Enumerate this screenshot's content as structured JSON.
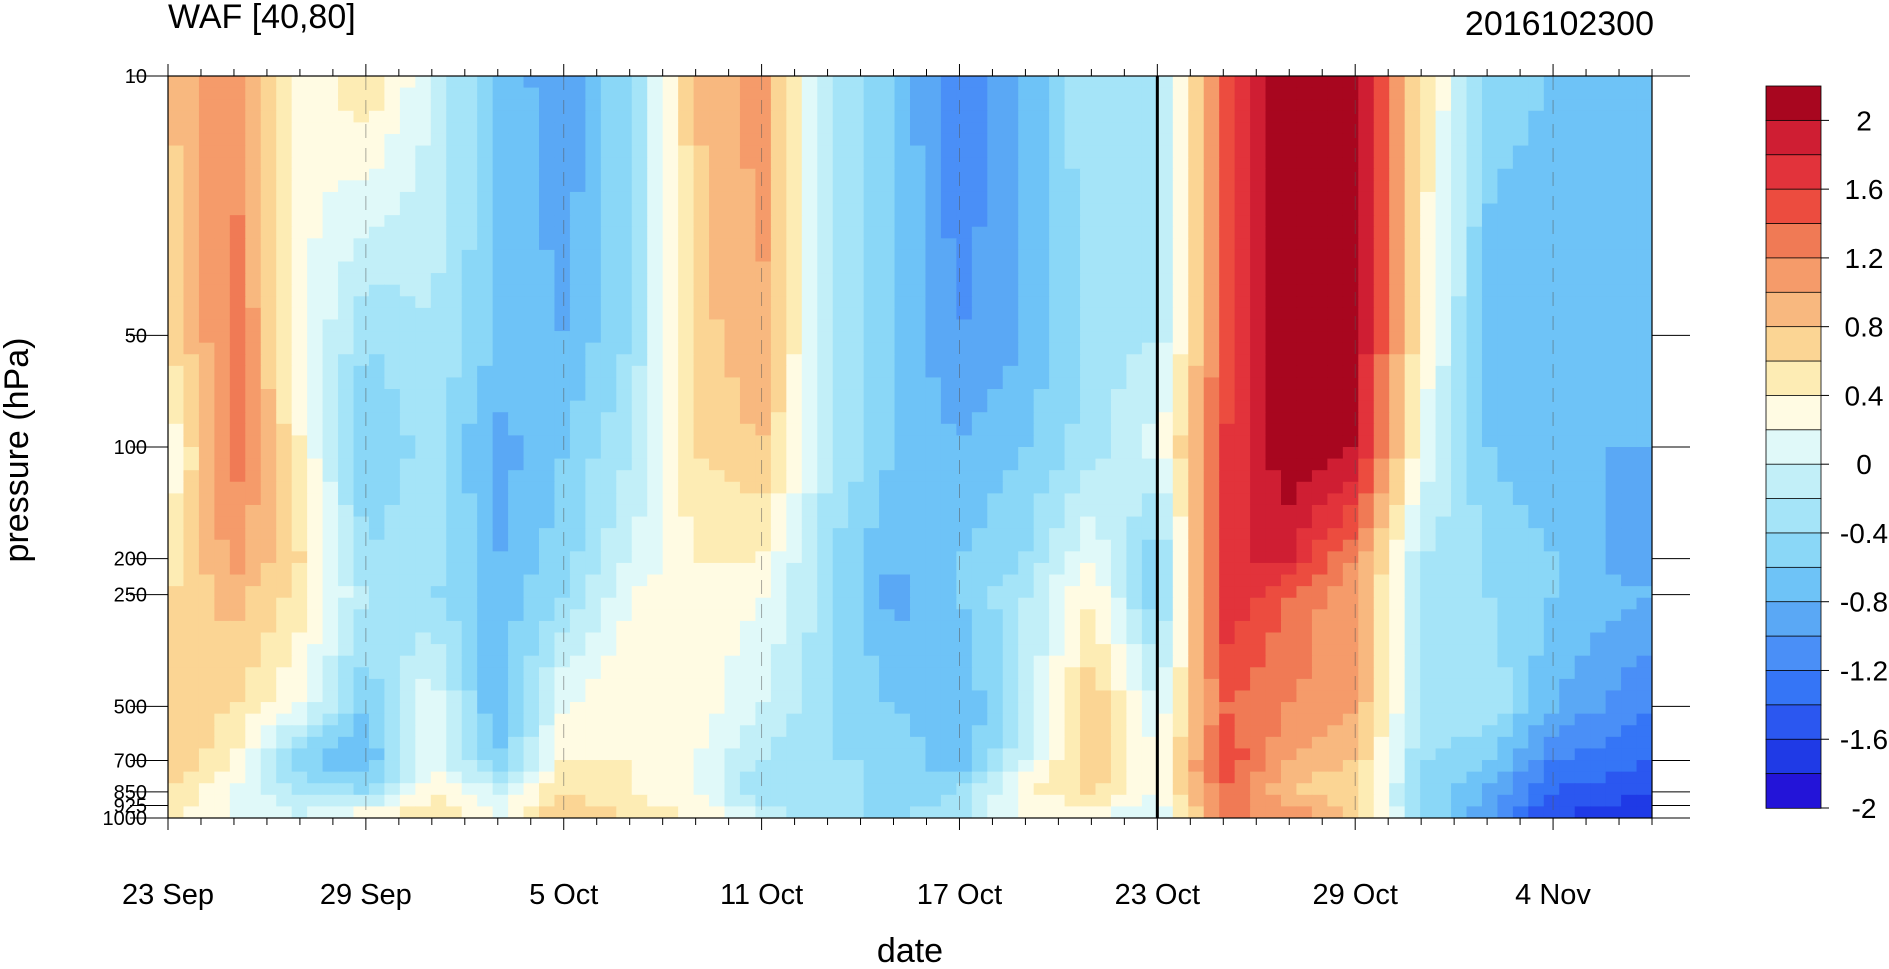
{
  "chart_data": {
    "type": "heatmap",
    "title_left": "WAF [40,80]",
    "title_right": "2016102300",
    "xlabel": "date",
    "ylabel": "pressure (hPa)",
    "x_ticks": [
      "23 Sep",
      "29 Sep",
      "5 Oct",
      "11 Oct",
      "17 Oct",
      "23 Oct",
      "29 Oct",
      "4 Nov"
    ],
    "x_tick_day_index": [
      0,
      6,
      12,
      18,
      24,
      30,
      36,
      42
    ],
    "x_range_days": [
      0,
      45
    ],
    "y_scale": "log",
    "y_ticks": [
      "10",
      "50",
      "100",
      "200",
      "250",
      "500",
      "700",
      "850",
      "925",
      "1000"
    ],
    "y_tick_values": [
      10,
      50,
      100,
      200,
      250,
      500,
      700,
      850,
      925,
      1000
    ],
    "y_range": [
      10,
      1000
    ],
    "marker_line_day_index": 30,
    "levels": [
      -2,
      -1.8,
      -1.6,
      -1.4,
      -1.2,
      -1,
      -0.8,
      -0.6,
      -0.4,
      -0.2,
      0,
      0.2,
      0.4,
      0.6,
      0.8,
      1,
      1.2,
      1.4,
      1.6,
      1.8,
      2
    ],
    "colorbar_labels": [
      "2",
      "1.6",
      "1.2",
      "0.8",
      "0.4",
      "0",
      "-0.4",
      "-0.8",
      "-1.2",
      "-1.6",
      "-2"
    ],
    "colors": [
      "#2314d8",
      "#1f3ae6",
      "#2b57f0",
      "#3575f6",
      "#4a8ff7",
      "#5aa8f5",
      "#6ec3f7",
      "#8ad7f7",
      "#a5e4f8",
      "#c2eff8",
      "#e0f9f9",
      "#fffbe3",
      "#fdecb4",
      "#fbd594",
      "#f8b87f",
      "#f59b6a",
      "#f07a55",
      "#ec4c3f",
      "#e2333b",
      "#cf1e33",
      "#a8061f"
    ],
    "grid": true,
    "legend": "colorbar-right",
    "pressure_levels": [
      10,
      50,
      100,
      200,
      250,
      500,
      700,
      850,
      1000
    ],
    "days": [
      0,
      2,
      4,
      6,
      8,
      10,
      12,
      14,
      16,
      18,
      20,
      22,
      24,
      26,
      28,
      30,
      32,
      34,
      36,
      38,
      40,
      42,
      45
    ],
    "values": [
      [
        0.8,
        1.2,
        0.2,
        0.6,
        0.0,
        -0.6,
        -1.0,
        -0.4,
        0.8,
        1.1,
        -0.2,
        -0.6,
        -1.2,
        -0.8,
        -0.2,
        -0.2,
        1.4,
        2.2,
        2.1,
        0.6,
        -0.5,
        -0.6,
        -0.6
      ],
      [
        0.6,
        1.3,
        0.3,
        -0.4,
        -0.2,
        -0.6,
        -0.8,
        -0.4,
        0.7,
        1.0,
        -0.2,
        -0.6,
        -1.0,
        -0.8,
        -0.3,
        -0.2,
        1.4,
        2.2,
        2.1,
        0.4,
        -0.7,
        -0.8,
        -0.6
      ],
      [
        0.2,
        1.3,
        0.4,
        -0.6,
        -0.3,
        -0.9,
        -0.6,
        -0.2,
        0.6,
        0.8,
        -0.1,
        -0.6,
        -0.8,
        -0.6,
        -0.3,
        0.1,
        1.6,
        2.2,
        2.0,
        0.2,
        -0.6,
        -0.8,
        -0.8
      ],
      [
        0.4,
        1.1,
        0.6,
        -0.4,
        -0.2,
        -0.8,
        -0.5,
        0.0,
        0.4,
        0.4,
        -0.4,
        -0.8,
        -0.6,
        -0.4,
        0.2,
        -0.6,
        1.8,
        1.8,
        1.2,
        -0.2,
        -0.4,
        -0.6,
        -1.0
      ],
      [
        0.6,
        0.9,
        0.5,
        -0.2,
        -0.4,
        -0.7,
        -0.4,
        0.2,
        0.4,
        0.2,
        -0.3,
        -0.9,
        -0.6,
        -0.2,
        0.4,
        -0.6,
        1.8,
        1.4,
        1.0,
        -0.2,
        -0.4,
        -0.6,
        -0.8
      ],
      [
        0.8,
        0.6,
        0.2,
        -0.6,
        0.2,
        -0.8,
        0.2,
        0.4,
        0.3,
        0.0,
        -0.4,
        -0.6,
        -0.8,
        -0.2,
        0.8,
        0.0,
        1.4,
        1.2,
        1.0,
        -0.2,
        -0.2,
        -0.8,
        -1.2
      ],
      [
        0.8,
        0.4,
        -0.6,
        -0.8,
        0.2,
        -0.6,
        0.4,
        0.4,
        0.2,
        -0.2,
        -0.4,
        -0.4,
        -0.8,
        0.0,
        0.8,
        0.2,
        1.6,
        1.0,
        0.8,
        -0.4,
        -0.6,
        -1.2,
        -1.4
      ],
      [
        0.6,
        0.2,
        -0.2,
        -0.4,
        0.4,
        0.0,
        0.6,
        0.4,
        0.2,
        -0.4,
        -0.2,
        -0.6,
        -0.4,
        0.4,
        0.6,
        0.2,
        1.4,
        0.8,
        0.6,
        -0.4,
        -0.8,
        -1.4,
        -1.6
      ],
      [
        0.4,
        0.2,
        0.0,
        0.4,
        0.6,
        0.2,
        0.8,
        0.6,
        0.4,
        0.0,
        -0.4,
        -0.4,
        -0.2,
        0.2,
        0.2,
        0.0,
        1.2,
        1.2,
        0.8,
        -0.4,
        -1.0,
        -1.6,
        -1.8
      ]
    ]
  }
}
